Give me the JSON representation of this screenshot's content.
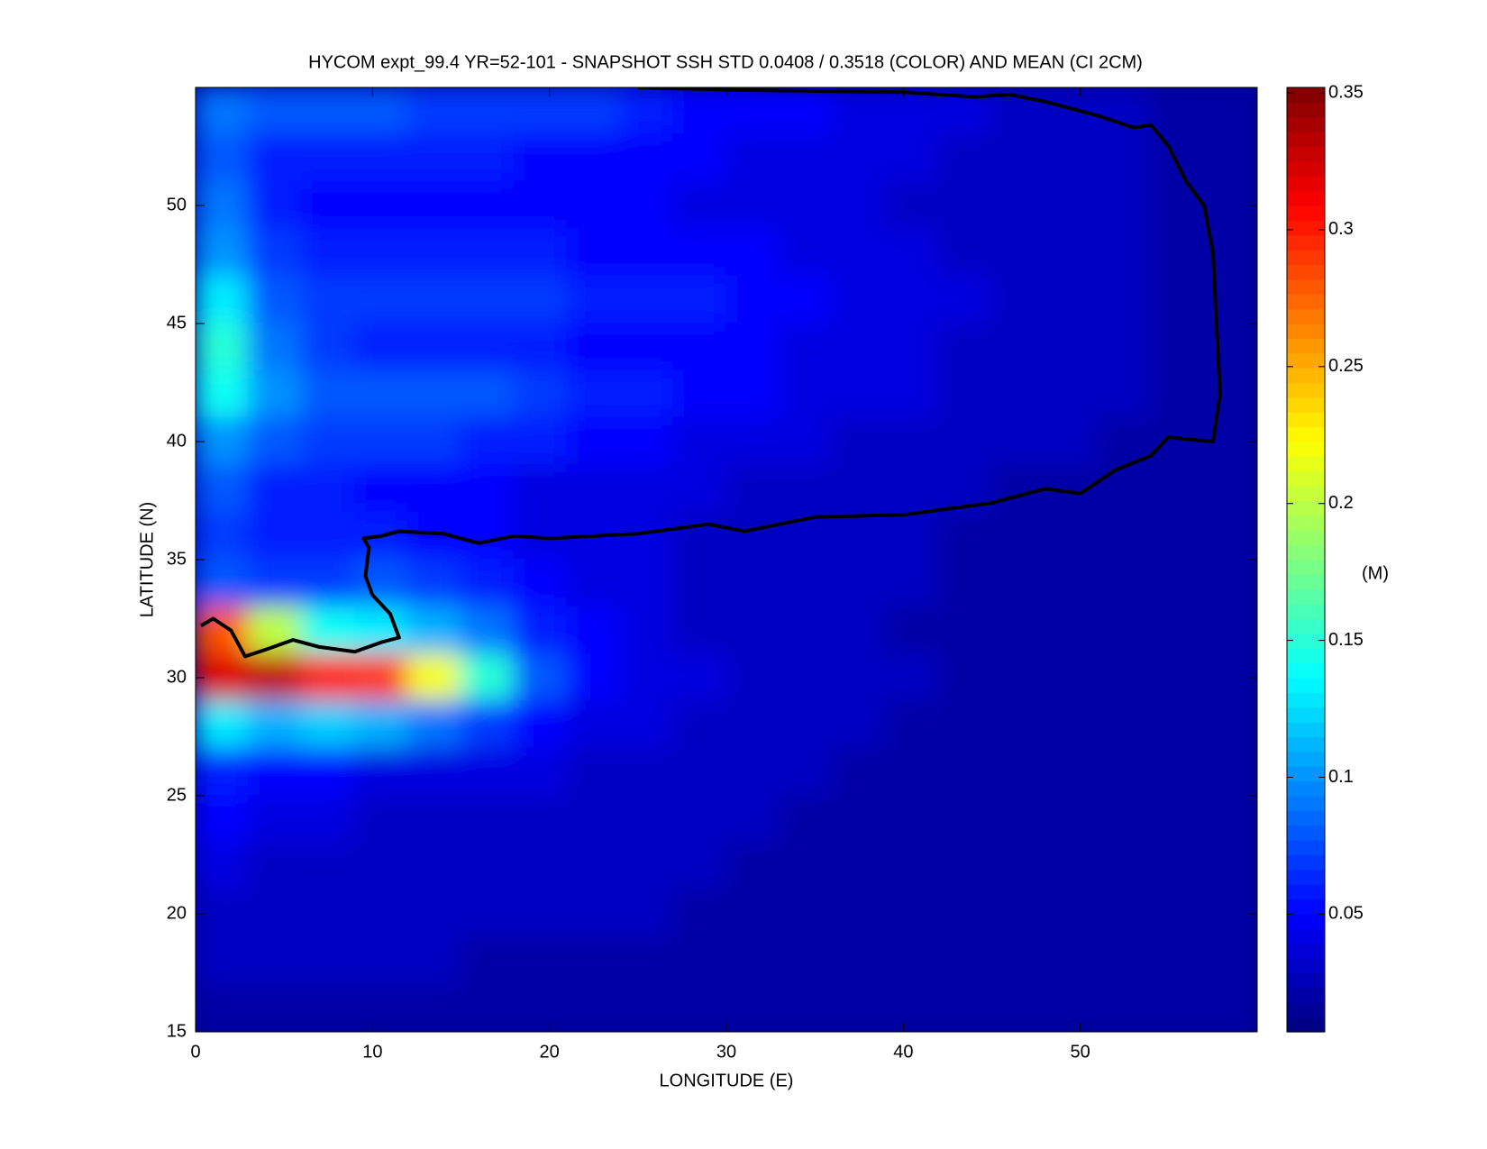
{
  "chart_data": {
    "type": "heatmap",
    "title": "HYCOM expt_99.4 YR=52-101 - SNAPSHOT SSH STD 0.0408 / 0.3518 (COLOR) AND MEAN (CI 2CM)",
    "x_label": "LONGITUDE (E)",
    "y_label": "LATITUDE (N)",
    "xlim": [
      0,
      60
    ],
    "ylim": [
      15,
      55
    ],
    "xticks": [
      0,
      10,
      20,
      30,
      40,
      50
    ],
    "yticks": [
      15,
      20,
      25,
      30,
      35,
      40,
      45,
      50
    ],
    "colormap": "jet",
    "x": [
      1.5,
      4.5,
      7.5,
      10.5,
      13.5,
      16.5,
      19.5,
      22.5,
      25.5,
      28.5,
      31.5,
      34.5,
      37.5,
      40.5,
      43.5,
      46.5,
      49.5,
      52.5,
      55.5,
      58.5
    ],
    "y": [
      54,
      52,
      50,
      48,
      46,
      44,
      42,
      40,
      38,
      36,
      34,
      32,
      30,
      28,
      26,
      24,
      22,
      20,
      18,
      16
    ],
    "z": [
      [
        0.09,
        0.08,
        0.08,
        0.08,
        0.07,
        0.07,
        0.07,
        0.07,
        0.06,
        0.05,
        0.05,
        0.05,
        0.04,
        0.04,
        0.04,
        0.03,
        0.03,
        0.03,
        0.02,
        0.02
      ],
      [
        0.08,
        0.06,
        0.06,
        0.06,
        0.06,
        0.06,
        0.05,
        0.05,
        0.05,
        0.05,
        0.04,
        0.04,
        0.04,
        0.04,
        0.03,
        0.03,
        0.03,
        0.03,
        0.02,
        0.02
      ],
      [
        0.09,
        0.06,
        0.05,
        0.05,
        0.05,
        0.05,
        0.05,
        0.05,
        0.05,
        0.04,
        0.04,
        0.04,
        0.04,
        0.03,
        0.03,
        0.03,
        0.03,
        0.03,
        0.02,
        0.02
      ],
      [
        0.1,
        0.07,
        0.06,
        0.06,
        0.06,
        0.06,
        0.06,
        0.05,
        0.05,
        0.05,
        0.05,
        0.04,
        0.04,
        0.04,
        0.03,
        0.03,
        0.03,
        0.03,
        0.02,
        0.02
      ],
      [
        0.13,
        0.08,
        0.07,
        0.07,
        0.07,
        0.07,
        0.07,
        0.06,
        0.06,
        0.06,
        0.05,
        0.05,
        0.04,
        0.04,
        0.04,
        0.03,
        0.03,
        0.03,
        0.02,
        0.02
      ],
      [
        0.15,
        0.09,
        0.07,
        0.06,
        0.06,
        0.06,
        0.06,
        0.05,
        0.05,
        0.05,
        0.05,
        0.04,
        0.04,
        0.04,
        0.03,
        0.03,
        0.03,
        0.03,
        0.02,
        0.02
      ],
      [
        0.14,
        0.1,
        0.08,
        0.08,
        0.08,
        0.08,
        0.07,
        0.06,
        0.06,
        0.05,
        0.05,
        0.04,
        0.04,
        0.04,
        0.03,
        0.03,
        0.03,
        0.03,
        0.02,
        0.02
      ],
      [
        0.1,
        0.08,
        0.07,
        0.07,
        0.07,
        0.06,
        0.06,
        0.05,
        0.05,
        0.04,
        0.04,
        0.04,
        0.03,
        0.03,
        0.03,
        0.03,
        0.03,
        0.02,
        0.02,
        0.02
      ],
      [
        0.08,
        0.06,
        0.06,
        0.05,
        0.05,
        0.05,
        0.04,
        0.04,
        0.04,
        0.04,
        0.03,
        0.03,
        0.03,
        0.03,
        0.03,
        0.02,
        0.02,
        0.02,
        0.02,
        0.02
      ],
      [
        0.07,
        0.06,
        0.06,
        0.06,
        0.05,
        0.05,
        0.04,
        0.04,
        0.04,
        0.03,
        0.03,
        0.03,
        0.03,
        0.03,
        0.02,
        0.02,
        0.02,
        0.02,
        0.02,
        0.02
      ],
      [
        0.08,
        0.07,
        0.07,
        0.08,
        0.07,
        0.06,
        0.05,
        0.04,
        0.04,
        0.03,
        0.03,
        0.03,
        0.03,
        0.03,
        0.02,
        0.02,
        0.02,
        0.02,
        0.02,
        0.02
      ],
      [
        0.28,
        0.2,
        0.14,
        0.13,
        0.11,
        0.09,
        0.06,
        0.05,
        0.04,
        0.03,
        0.03,
        0.03,
        0.03,
        0.02,
        0.02,
        0.02,
        0.02,
        0.02,
        0.02,
        0.02
      ],
      [
        0.32,
        0.33,
        0.3,
        0.29,
        0.22,
        0.15,
        0.08,
        0.05,
        0.04,
        0.04,
        0.03,
        0.03,
        0.03,
        0.03,
        0.02,
        0.02,
        0.02,
        0.02,
        0.02,
        0.02
      ],
      [
        0.13,
        0.11,
        0.12,
        0.11,
        0.09,
        0.07,
        0.05,
        0.04,
        0.04,
        0.03,
        0.03,
        0.03,
        0.03,
        0.02,
        0.02,
        0.02,
        0.02,
        0.02,
        0.02,
        0.02
      ],
      [
        0.06,
        0.05,
        0.05,
        0.04,
        0.04,
        0.04,
        0.04,
        0.03,
        0.03,
        0.03,
        0.03,
        0.03,
        0.02,
        0.02,
        0.02,
        0.02,
        0.02,
        0.02,
        0.02,
        0.02
      ],
      [
        0.05,
        0.04,
        0.04,
        0.03,
        0.03,
        0.03,
        0.03,
        0.03,
        0.03,
        0.03,
        0.03,
        0.02,
        0.02,
        0.02,
        0.02,
        0.02,
        0.02,
        0.02,
        0.02,
        0.02
      ],
      [
        0.04,
        0.03,
        0.03,
        0.03,
        0.03,
        0.03,
        0.03,
        0.03,
        0.03,
        0.03,
        0.02,
        0.02,
        0.02,
        0.02,
        0.02,
        0.02,
        0.02,
        0.02,
        0.02,
        0.02
      ],
      [
        0.03,
        0.03,
        0.03,
        0.03,
        0.03,
        0.03,
        0.03,
        0.03,
        0.03,
        0.02,
        0.02,
        0.02,
        0.02,
        0.02,
        0.02,
        0.02,
        0.02,
        0.02,
        0.02,
        0.02
      ],
      [
        0.03,
        0.03,
        0.03,
        0.03,
        0.03,
        0.02,
        0.02,
        0.02,
        0.02,
        0.02,
        0.02,
        0.02,
        0.02,
        0.02,
        0.02,
        0.02,
        0.02,
        0.02,
        0.02,
        0.02
      ],
      [
        0.02,
        0.02,
        0.02,
        0.02,
        0.02,
        0.02,
        0.02,
        0.02,
        0.02,
        0.02,
        0.02,
        0.02,
        0.02,
        0.02,
        0.02,
        0.02,
        0.02,
        0.02,
        0.02,
        0.02
      ]
    ],
    "contour": {
      "x": [
        0.3,
        1,
        2,
        2.8,
        4,
        5.5,
        7,
        9,
        10.5,
        11.5,
        11,
        10,
        9.6,
        9.8,
        9.5,
        10.5,
        11.5,
        14,
        16,
        18,
        20,
        25,
        29,
        31,
        35,
        40,
        45,
        48,
        50,
        52,
        54,
        55,
        56,
        57.5,
        57.9,
        57.5,
        57,
        56,
        55,
        54,
        53,
        51,
        48,
        46,
        44,
        40,
        30,
        25
      ],
      "y": [
        32.2,
        32.5,
        32,
        30.9,
        31.2,
        31.6,
        31.3,
        31.1,
        31.5,
        31.7,
        32.7,
        33.5,
        34.3,
        35.5,
        35.9,
        36,
        36.2,
        36.1,
        35.7,
        36,
        35.9,
        36.1,
        36.5,
        36.2,
        36.8,
        36.9,
        37.4,
        38,
        37.8,
        38.8,
        39.4,
        40.2,
        40.1,
        40,
        42,
        48,
        50,
        51,
        52.5,
        53.4,
        53.3,
        53.8,
        54.4,
        54.7,
        54.6,
        54.8,
        54.9,
        55
      ]
    },
    "colorbar": {
      "label": "(M)",
      "clim": [
        0.007,
        0.352
      ],
      "ticks": [
        0.05,
        0.1,
        0.15,
        0.2,
        0.25,
        0.3,
        0.35
      ]
    }
  }
}
